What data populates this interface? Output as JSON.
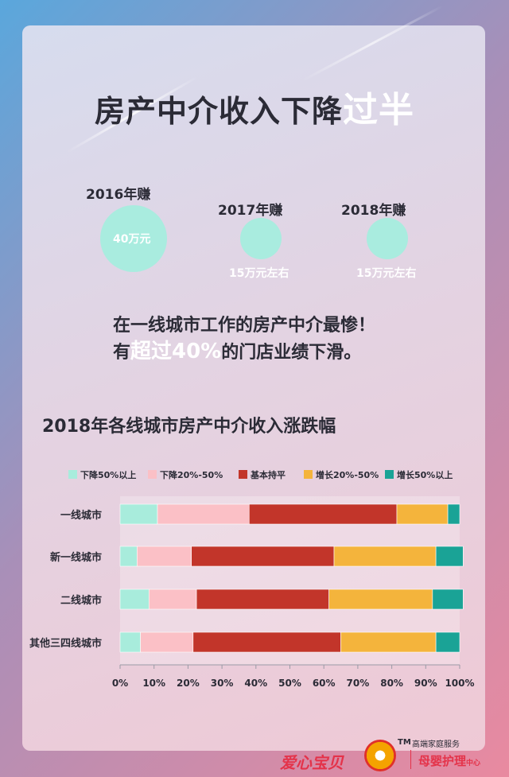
{
  "headline": {
    "main": "房产中介收入下降",
    "highlight": "过半"
  },
  "earnings": [
    {
      "year": "2016年赚",
      "amount": "40万元"
    },
    {
      "year": "2017年赚",
      "amount": "15万元左右"
    },
    {
      "year": "2018年赚",
      "amount": "15万元左右"
    }
  ],
  "statement": {
    "line1": "在一线城市工作的房产中介最惨！",
    "line2_pre": "有",
    "line2_hl1": "超过",
    "line2_hl2": "40%",
    "line2_post": "的门店业绩下滑。"
  },
  "chart_data": {
    "type": "bar",
    "orientation": "horizontal",
    "stacked": true,
    "percent": true,
    "title": "2018年各线城市房产中介收入涨跌幅",
    "categories": [
      "一线城市",
      "新一线城市",
      "二线城市",
      "其他三四线城市"
    ],
    "series": [
      {
        "name": "下降50%以上",
        "color": "#a8ecdc",
        "values": [
          11,
          5,
          8.5,
          6
        ]
      },
      {
        "name": "下降20%-50%",
        "color": "#fbc0c6",
        "values": [
          27,
          16,
          14,
          15.5
        ]
      },
      {
        "name": "基本持平",
        "color": "#c2352a",
        "values": [
          43.5,
          42,
          39,
          43.5
        ]
      },
      {
        "name": "增长20%-50%",
        "color": "#f4b43c",
        "values": [
          15,
          30,
          30.5,
          28
        ]
      },
      {
        "name": "增长50%以上",
        "color": "#1aa396",
        "values": [
          3.5,
          8,
          9,
          7
        ]
      }
    ],
    "x_ticks": [
      "0%",
      "10%",
      "20%",
      "30%",
      "40%",
      "50%",
      "60%",
      "70%",
      "80%",
      "90%",
      "100%"
    ],
    "xlim": [
      0,
      100
    ],
    "legend": "top",
    "grid": false
  },
  "footer": {
    "tm": "TM",
    "service": "高端家庭服务",
    "brand_left": "爱心宝贝",
    "brand_right": "母婴护理",
    "brand_right_suffix": "中心"
  }
}
